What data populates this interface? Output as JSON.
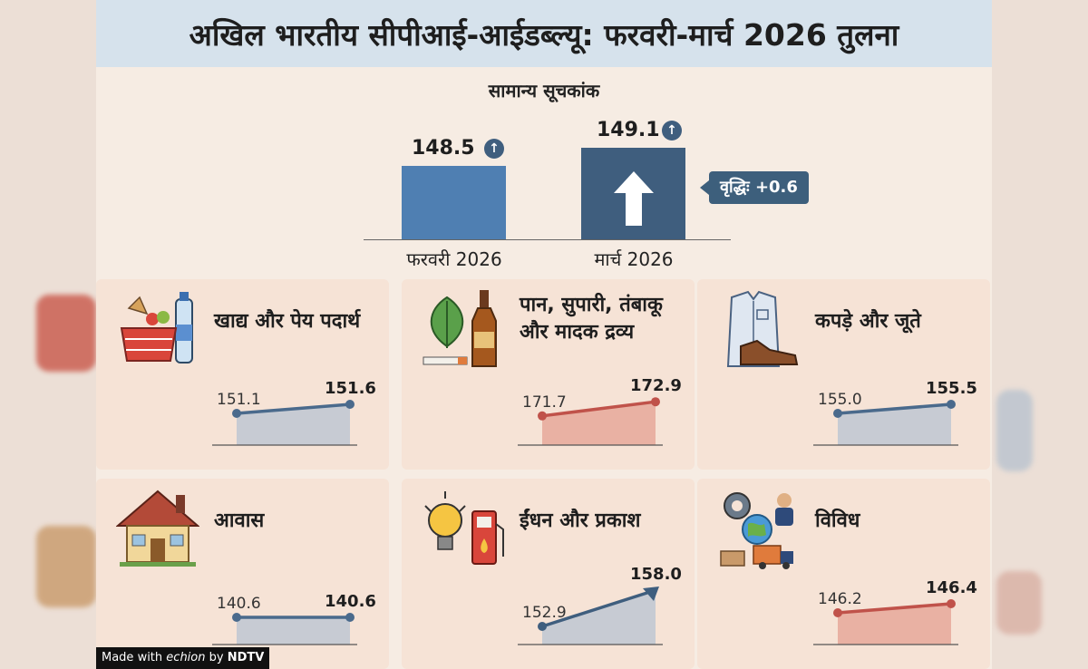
{
  "title": "अखिल भारतीय सीपीआई-आईडब्ल्यू: फरवरी-मार्च 2026 तुलना",
  "general_index": {
    "label": "सामान्य सूचकांक",
    "delta_label": "वृद्धिः +0.6"
  },
  "chart_data": [
    {
      "type": "bar",
      "title": "सामान्य सूचकांक",
      "categories": [
        "फरवरी 2026",
        "मार्च 2026"
      ],
      "values": [
        148.5,
        149.1
      ],
      "value_labels": [
        "148.5",
        "149.1"
      ],
      "annotation": "वृद्धिः +0.6",
      "colors": [
        "#4f7fb2",
        "#3f5e7e"
      ]
    },
    {
      "type": "area",
      "title": "खाद्य और पेय पदार्थ",
      "x": [
        "फरवरी 2026",
        "मार्च 2026"
      ],
      "values": [
        151.1,
        151.6
      ],
      "value_labels": [
        "151.1",
        "151.6"
      ],
      "color": "#4a6a8c",
      "fill": "#c7cbd3"
    },
    {
      "type": "area",
      "title": "पान, सुपारी, तंबाकू और मादक द्रव्य",
      "x": [
        "फरवरी 2026",
        "मार्च 2026"
      ],
      "values": [
        171.7,
        172.9
      ],
      "value_labels": [
        "171.7",
        "172.9"
      ],
      "color": "#c0524a",
      "fill": "#e9b1a3"
    },
    {
      "type": "area",
      "title": "कपड़े और जूते",
      "x": [
        "फरवरी 2026",
        "मार्च 2026"
      ],
      "values": [
        155.0,
        155.5
      ],
      "value_labels": [
        "155.0",
        "155.5"
      ],
      "color": "#4a6a8c",
      "fill": "#c7cbd3"
    },
    {
      "type": "area",
      "title": "आवास",
      "x": [
        "फरवरी 2026",
        "मार्च 2026"
      ],
      "values": [
        140.6,
        140.6
      ],
      "value_labels": [
        "140.6",
        "140.6"
      ],
      "color": "#4a6a8c",
      "fill": "#c7cbd3"
    },
    {
      "type": "area",
      "title": "ईंधन और प्रकाश",
      "x": [
        "फरवरी 2026",
        "मार्च 2026"
      ],
      "values": [
        152.9,
        158.0
      ],
      "value_labels": [
        "152.9",
        "158.0"
      ],
      "color": "#3f5e7e",
      "fill": "#c7cbd3",
      "arrow": true
    },
    {
      "type": "area",
      "title": "विविध",
      "x": [
        "फरवरी 2026",
        "मार्च 2026"
      ],
      "values": [
        146.2,
        146.4
      ],
      "value_labels": [
        "146.2",
        "146.4"
      ],
      "color": "#c0524a",
      "fill": "#e9b1a3"
    }
  ],
  "cards": [
    {
      "title_lines": [
        "खाद्य और पेय पदार्थ"
      ],
      "icon": "grocery-basket-icon"
    },
    {
      "title_lines": [
        "पान, सुपारी, तंबाकू",
        "और मादक द्रव्य"
      ],
      "icon": "tobacco-leaf-bottle-icon"
    },
    {
      "title_lines": [
        "कपड़े और जूते"
      ],
      "icon": "shirt-shoe-icon"
    },
    {
      "title_lines": [
        "आवास"
      ],
      "icon": "house-icon"
    },
    {
      "title_lines": [
        "ईंधन और प्रकाश"
      ],
      "icon": "bulb-fuel-pump-icon"
    },
    {
      "title_lines": [
        "विविध"
      ],
      "icon": "misc-services-icon"
    }
  ],
  "watermark": {
    "made_with": "Made with",
    "brand": "echion",
    "by": "by",
    "network": "NDTV"
  }
}
